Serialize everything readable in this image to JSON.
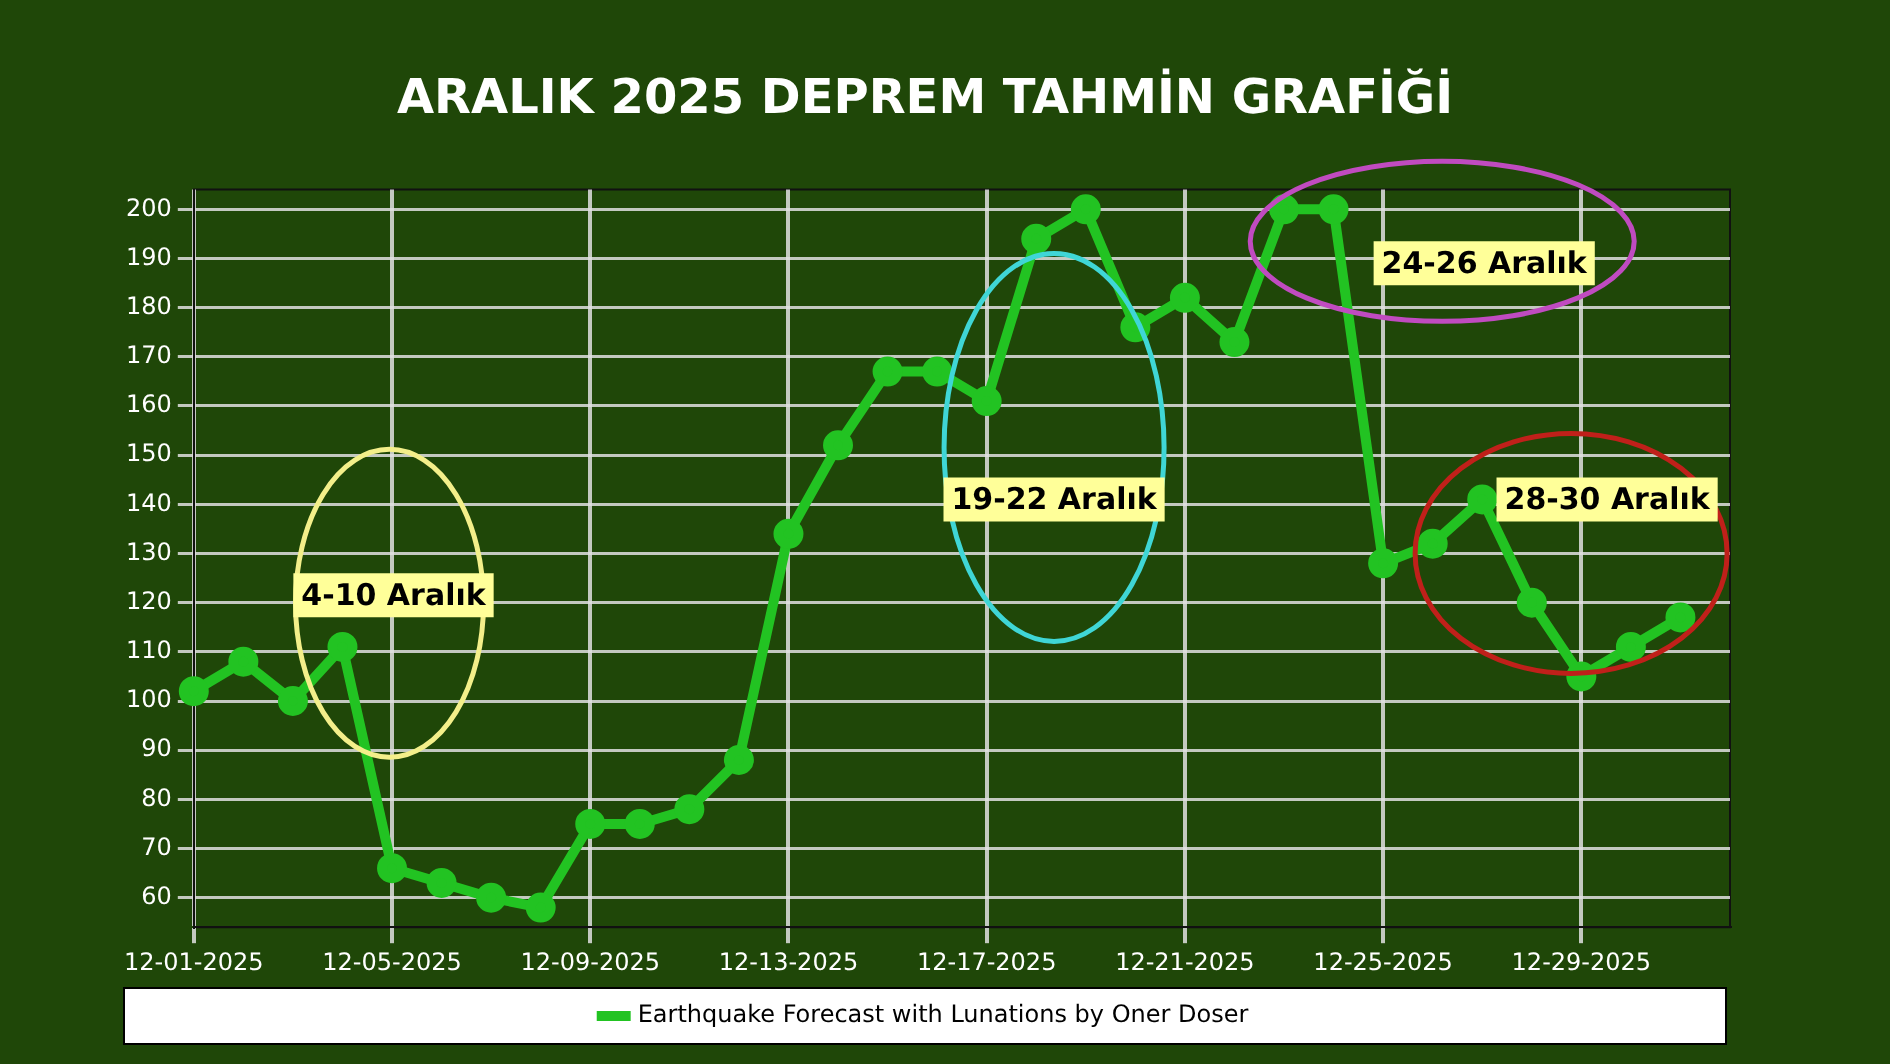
{
  "chart_data": {
    "type": "line",
    "title": "ARALIK 2025 DEPREM TAHMİN GRAFİĞİ",
    "x": [
      "2025-12-01",
      "2025-12-02",
      "2025-12-03",
      "2025-12-04",
      "2025-12-05",
      "2025-12-06",
      "2025-12-07",
      "2025-12-08",
      "2025-12-09",
      "2025-12-10",
      "2025-12-11",
      "2025-12-12",
      "2025-12-13",
      "2025-12-14",
      "2025-12-15",
      "2025-12-16",
      "2025-12-17",
      "2025-12-18",
      "2025-12-19",
      "2025-12-20",
      "2025-12-21",
      "2025-12-22",
      "2025-12-23",
      "2025-12-24",
      "2025-12-25",
      "2025-12-26",
      "2025-12-27",
      "2025-12-28",
      "2025-12-29",
      "2025-12-30",
      "2025-12-31"
    ],
    "series": [
      {
        "name": "Earthquake Forecast with Lunations by Oner Doser",
        "color": "#22c322",
        "values": [
          102,
          108,
          100,
          111,
          66,
          63,
          60,
          58,
          75,
          75,
          78,
          88,
          134,
          152,
          167,
          167,
          161,
          194,
          200,
          176,
          182,
          173,
          200,
          200,
          128,
          132,
          141,
          120,
          105,
          111,
          117
        ]
      }
    ],
    "xlim": [
      "2025-12-01",
      "2026-01-01"
    ],
    "xticks": [
      {
        "value": "2025-12-01",
        "label": "12-01-2025"
      },
      {
        "value": "2025-12-05",
        "label": "12-05-2025"
      },
      {
        "value": "2025-12-09",
        "label": "12-09-2025"
      },
      {
        "value": "2025-12-13",
        "label": "12-13-2025"
      },
      {
        "value": "2025-12-17",
        "label": "12-17-2025"
      },
      {
        "value": "2025-12-21",
        "label": "12-21-2025"
      },
      {
        "value": "2025-12-25",
        "label": "12-25-2025"
      },
      {
        "value": "2025-12-29",
        "label": "12-29-2025"
      }
    ],
    "ylim": [
      54,
      204
    ],
    "yticks": [
      60,
      70,
      80,
      90,
      100,
      110,
      120,
      130,
      140,
      150,
      160,
      170,
      180,
      190,
      200
    ],
    "grid": true,
    "legend": "bottom",
    "marker": "circle",
    "line_style": "solid",
    "annotations": [
      "4-10 Aralık",
      "19-22 Aralık",
      "24-26 Aralık",
      "28-30 Aralık"
    ]
  }
}
